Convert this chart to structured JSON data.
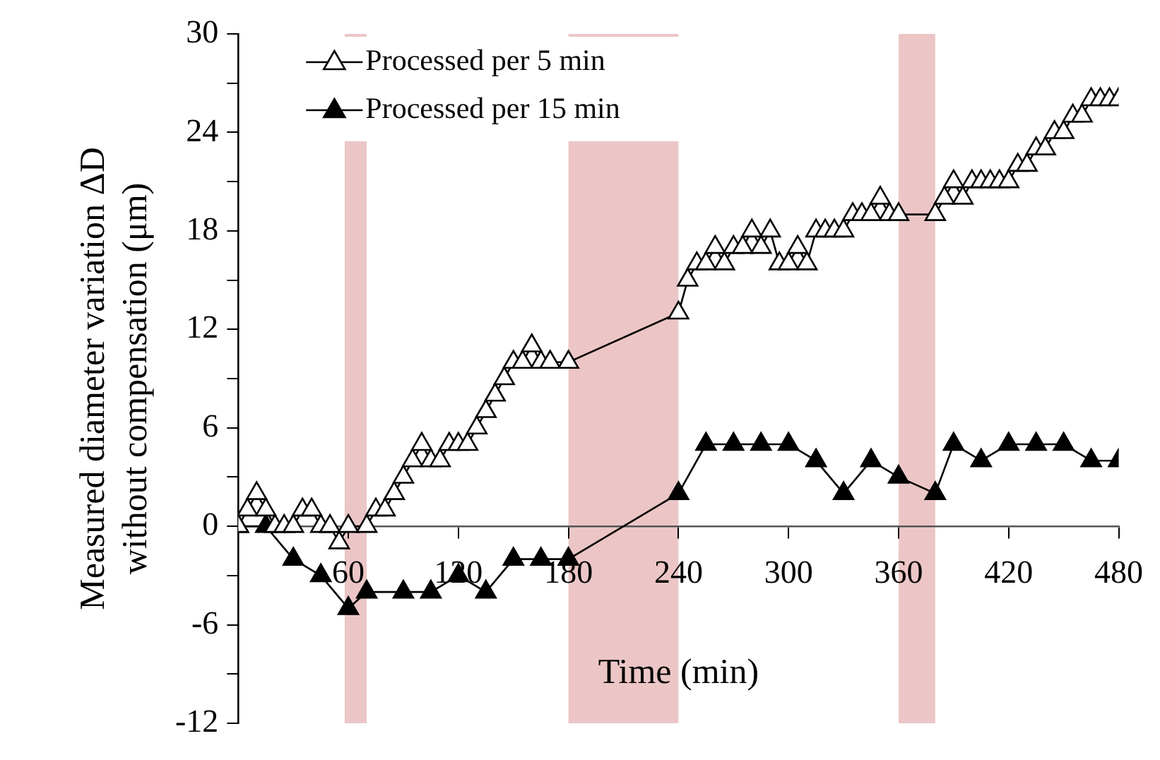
{
  "chart_data": {
    "type": "line",
    "xlabel": "Time (min)",
    "ylabel": "Measured diameter variation ΔD\nwithout compensation (μm)",
    "xlim": [
      0,
      480
    ],
    "xticks": [
      60,
      120,
      180,
      240,
      300,
      360,
      420,
      480
    ],
    "ylim": [
      -12,
      30
    ],
    "yticks": [
      -12,
      {
        "value": -9,
        "label": null
      },
      -6,
      {
        "value": -3,
        "label": null
      },
      0,
      {
        "value": 3,
        "label": null
      },
      6,
      {
        "value": 9,
        "label": null
      },
      12,
      {
        "value": 15,
        "label": null
      },
      18,
      {
        "value": 21,
        "label": null
      },
      24,
      {
        "value": 27,
        "label": null
      },
      30
    ],
    "grid": false,
    "legend": "top left",
    "marker": "triangle",
    "line_style": "solid",
    "series": [
      {
        "name": "Processed per 5 min",
        "color": "#ffffff",
        "x": [
          0,
          5,
          10,
          15,
          20,
          25,
          30,
          35,
          40,
          45,
          50,
          55,
          60,
          70,
          75,
          80,
          85,
          90,
          95,
          100,
          105,
          110,
          115,
          120,
          125,
          130,
          135,
          140,
          145,
          150,
          155,
          160,
          165,
          170,
          180,
          240,
          245,
          250,
          255,
          260,
          265,
          270,
          275,
          280,
          285,
          290,
          295,
          300,
          305,
          310,
          315,
          320,
          325,
          330,
          335,
          340,
          345,
          350,
          355,
          360,
          380,
          385,
          390,
          395,
          400,
          405,
          410,
          415,
          420,
          425,
          430,
          435,
          440,
          445,
          450,
          455,
          460,
          465,
          470,
          475,
          480
        ],
        "values": [
          0,
          1,
          2,
          1,
          0,
          0,
          0,
          1,
          1,
          0,
          0,
          -1,
          0,
          0,
          1,
          1,
          2,
          3,
          4,
          5,
          4,
          4,
          5,
          5,
          5,
          6,
          7,
          8,
          9,
          10,
          10,
          11,
          10,
          10,
          10,
          13,
          15,
          16,
          16,
          17,
          16,
          17,
          17,
          18,
          17,
          18,
          16,
          16,
          17,
          16,
          18,
          18,
          18,
          18,
          19,
          19,
          19,
          20,
          19,
          19,
          19,
          20,
          21,
          20,
          21,
          21,
          21,
          21,
          21,
          22,
          22,
          23,
          23,
          24,
          24,
          25,
          25,
          26,
          26,
          26,
          26
        ]
      },
      {
        "name": "Processed per 15 min",
        "color": "#000000",
        "x": [
          0,
          15,
          30,
          45,
          60,
          70,
          90,
          105,
          120,
          135,
          150,
          165,
          180,
          240,
          255,
          270,
          285,
          300,
          315,
          330,
          345,
          360,
          380,
          390,
          405,
          420,
          435,
          450,
          465,
          480
        ],
        "values": [
          0,
          0,
          -2,
          -3,
          -5,
          -4,
          -4,
          -4,
          -3,
          -4,
          -2,
          -2,
          -2,
          2,
          5,
          5,
          5,
          5,
          4,
          2,
          4,
          3,
          2,
          5,
          4,
          5,
          5,
          5,
          4,
          4
        ]
      }
    ],
    "bands": [
      {
        "axis": "x",
        "from": 58,
        "to": 70,
        "color": "#e6b3b3"
      },
      {
        "axis": "x",
        "from": 180,
        "to": 240,
        "color": "#e6b3b3"
      },
      {
        "axis": "x",
        "from": 360,
        "to": 380,
        "color": "#e6b3b3"
      }
    ]
  }
}
